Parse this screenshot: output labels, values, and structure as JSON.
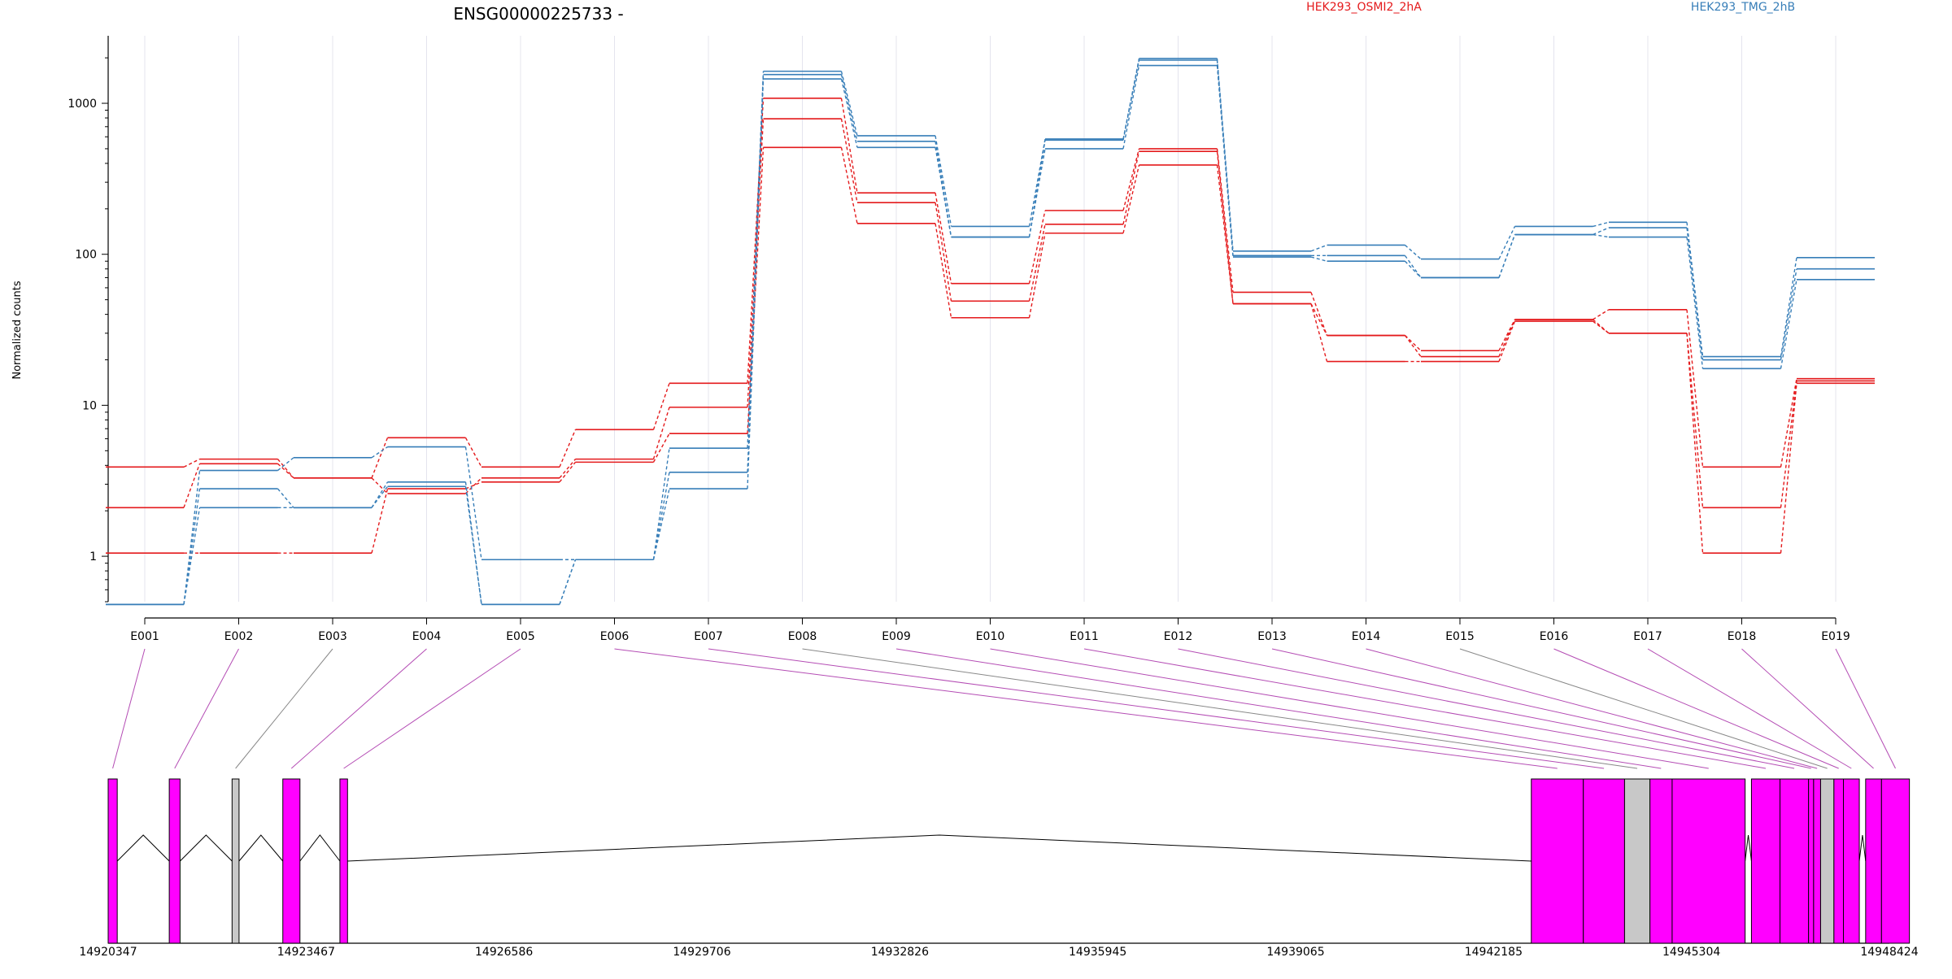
{
  "chart_data": {
    "type": "line",
    "title": "ENSG00000225733 -",
    "ylabel": "Normalized counts",
    "y_scale": "log",
    "ylim": [
      0.5,
      2800
    ],
    "y_ticks": [
      "1",
      "10",
      "100",
      "1000"
    ],
    "grid": "vertical",
    "legend_placement": "top",
    "colors": {
      "group_a": "#e41a1c",
      "group_b": "#377eb8",
      "exon_used": "#ff00ff",
      "exon_excluded": "#c8c8c8",
      "connector_used": "#b44cb4",
      "connector_excluded": "#888888"
    },
    "groups": [
      {
        "label": "HEK293_OSMI2_2hA",
        "color": "#e41a1c"
      },
      {
        "label": "HEK293_TMG_2hB",
        "color": "#377eb8"
      }
    ],
    "categories": [
      "E001",
      "E002",
      "E003",
      "E004",
      "E005",
      "E006",
      "E007",
      "E008",
      "E009",
      "E010",
      "E011",
      "E012",
      "E013",
      "E014",
      "E015",
      "E016",
      "E017",
      "E018",
      "E019"
    ],
    "series": [
      {
        "group": 0,
        "values": [
          3.9,
          4.4,
          3.3,
          6.1,
          3.9,
          6.9,
          14,
          1080,
          255,
          64,
          195,
          500,
          56,
          29,
          23,
          37,
          43,
          3.9,
          15
        ]
      },
      {
        "group": 0,
        "values": [
          2.1,
          4.1,
          3.3,
          2.6,
          3.3,
          4.4,
          9.7,
          790,
          220,
          49,
          158,
          480,
          47,
          29,
          21,
          37,
          30,
          2.1,
          14.5
        ]
      },
      {
        "group": 0,
        "values": [
          1.05,
          1.05,
          1.05,
          2.8,
          3.1,
          4.2,
          6.5,
          510,
          160,
          38,
          138,
          390,
          47,
          19.5,
          19.5,
          36,
          30,
          1.05,
          14
        ]
      },
      {
        "group": 1,
        "values": [
          0.48,
          3.7,
          4.5,
          5.3,
          0.95,
          0.95,
          5.2,
          1630,
          610,
          153,
          580,
          1980,
          105,
          115,
          93,
          153,
          163,
          21,
          95
        ]
      },
      {
        "group": 1,
        "values": [
          0.48,
          2.8,
          2.1,
          3.1,
          0.48,
          0.95,
          3.6,
          1550,
          560,
          130,
          570,
          1930,
          98,
          98,
          70,
          135,
          150,
          20,
          80
        ]
      },
      {
        "group": 1,
        "values": [
          0.48,
          2.1,
          2.1,
          2.9,
          0.48,
          0.95,
          2.8,
          1450,
          510,
          130,
          500,
          1780,
          96,
          90,
          70,
          135,
          130,
          17.5,
          68
        ]
      }
    ],
    "gene_model": {
      "x_ticks": [
        "14920347",
        "14923467",
        "14926586",
        "14929706",
        "14932826",
        "14935945",
        "14939065",
        "14942185",
        "14945304",
        "14948424"
      ],
      "exons": [
        {
          "id": "E001",
          "start": 14920347,
          "end": 14920490,
          "used": true
        },
        {
          "id": "E002",
          "start": 14921310,
          "end": 14921480,
          "used": true
        },
        {
          "id": "E003",
          "start": 14922300,
          "end": 14922410,
          "used": false
        },
        {
          "id": "E004",
          "start": 14923100,
          "end": 14923370,
          "used": true
        },
        {
          "id": "E005",
          "start": 14924000,
          "end": 14924120,
          "used": true
        },
        {
          "id": "E006",
          "start": 14942780,
          "end": 14943600,
          "used": true
        },
        {
          "id": "E007",
          "start": 14943600,
          "end": 14944250,
          "used": true
        },
        {
          "id": "E008",
          "start": 14944250,
          "end": 14944650,
          "used": false
        },
        {
          "id": "E009",
          "start": 14944650,
          "end": 14945000,
          "used": true
        },
        {
          "id": "E010",
          "start": 14945000,
          "end": 14946150,
          "used": true
        },
        {
          "id": "E011",
          "start": 14946250,
          "end": 14946700,
          "used": true
        },
        {
          "id": "E012",
          "start": 14946700,
          "end": 14947150,
          "used": true
        },
        {
          "id": "E013",
          "start": 14947150,
          "end": 14947230,
          "used": true
        },
        {
          "id": "E014",
          "start": 14947230,
          "end": 14947340,
          "used": true
        },
        {
          "id": "E015",
          "start": 14947340,
          "end": 14947550,
          "used": false
        },
        {
          "id": "E016",
          "start": 14947550,
          "end": 14947700,
          "used": true
        },
        {
          "id": "E017",
          "start": 14947700,
          "end": 14947950,
          "used": true
        },
        {
          "id": "E018",
          "start": 14948050,
          "end": 14948300,
          "used": true
        },
        {
          "id": "E019",
          "start": 14948300,
          "end": 14948740,
          "used": true
        }
      ]
    }
  }
}
